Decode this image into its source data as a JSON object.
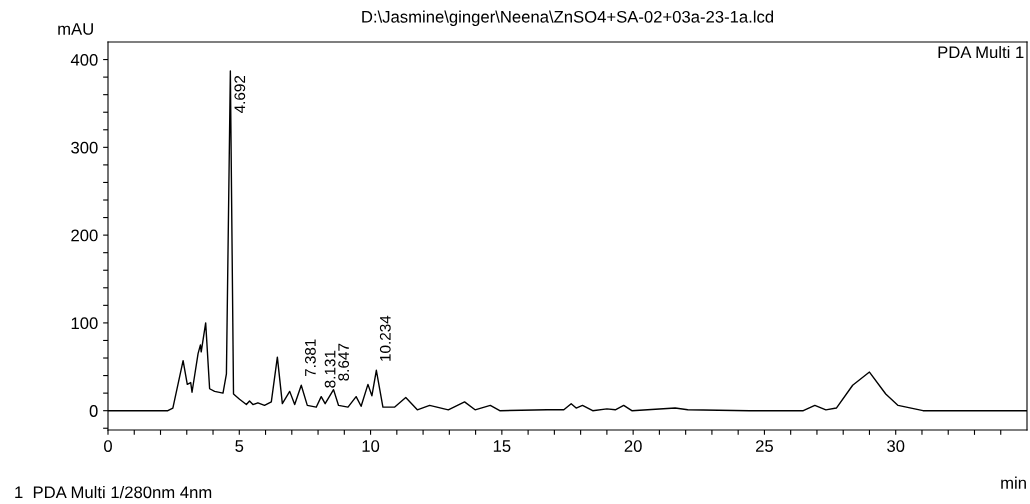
{
  "chart_data": {
    "type": "line",
    "title": "D:\\Jasmine\\ginger\\Neena\\ZnSO4+SA-02+03a-23-1a.lcd",
    "xlabel": "min",
    "ylabel": "mAU",
    "x": [
      0,
      1,
      2,
      2.28,
      2.47,
      2.86,
      3.02,
      3.15,
      3.2,
      3.43,
      3.52,
      3.55,
      3.72,
      3.87,
      4.06,
      4.38,
      4.51,
      4.66,
      4.78,
      5.01,
      5.27,
      5.39,
      5.52,
      5.71,
      5.96,
      6.22,
      6.45,
      6.64,
      6.92,
      7.11,
      7.36,
      7.59,
      7.93,
      8.12,
      8.27,
      8.59,
      8.78,
      9.14,
      9.45,
      9.64,
      9.9,
      10.05,
      10.22,
      10.47,
      10.91,
      11.34,
      11.78,
      12.25,
      12.96,
      13.58,
      13.98,
      14.56,
      14.92,
      16.73,
      17.36,
      17.64,
      17.83,
      18.07,
      18.46,
      19.0,
      19.32,
      19.64,
      19.95,
      21.6,
      22.08,
      24.43,
      26.48,
      26.92,
      27.34,
      27.74,
      28.36,
      29.0,
      29.62,
      30.09,
      31.04,
      35.0
    ],
    "series": [
      {
        "color": "#000000",
        "values": [
          0,
          0,
          0,
          0,
          3,
          57,
          30,
          32,
          21,
          65,
          75,
          67,
          100,
          25,
          22,
          20,
          42,
          387,
          19,
          13,
          7,
          11,
          7,
          9,
          6,
          10,
          61,
          8,
          22,
          7,
          29,
          6,
          4,
          16,
          8,
          24,
          6,
          4,
          16,
          5,
          30,
          17,
          46,
          4,
          4,
          15,
          1,
          6,
          1,
          10,
          1,
          6,
          0,
          1,
          1,
          8,
          3,
          6,
          0,
          2,
          1,
          6,
          0,
          3,
          1,
          0,
          0,
          6,
          1,
          3,
          29,
          44,
          19,
          6,
          0,
          0
        ]
      }
    ],
    "xlim": [
      0,
      35
    ],
    "ylim": [
      -22,
      420
    ],
    "xticks": [
      0,
      {
        "value": 1,
        "label": null
      },
      {
        "value": 2,
        "label": null
      },
      {
        "value": 3,
        "label": null
      },
      {
        "value": 4,
        "label": null
      },
      5,
      {
        "value": 6,
        "label": null
      },
      {
        "value": 7,
        "label": null
      },
      {
        "value": 8,
        "label": null
      },
      {
        "value": 9,
        "label": null
      },
      10,
      {
        "value": 11,
        "label": null
      },
      {
        "value": 12,
        "label": null
      },
      {
        "value": 13,
        "label": null
      },
      {
        "value": 14,
        "label": null
      },
      15,
      {
        "value": 16,
        "label": null
      },
      {
        "value": 17,
        "label": null
      },
      {
        "value": 18,
        "label": null
      },
      {
        "value": 19,
        "label": null
      },
      20,
      {
        "value": 21,
        "label": null
      },
      {
        "value": 22,
        "label": null
      },
      {
        "value": 23,
        "label": null
      },
      {
        "value": 24,
        "label": null
      },
      25,
      {
        "value": 26,
        "label": null
      },
      {
        "value": 27,
        "label": null
      },
      {
        "value": 28,
        "label": null
      },
      {
        "value": 29,
        "label": null
      },
      30,
      {
        "value": 31,
        "label": null
      },
      {
        "value": 32,
        "label": null
      },
      {
        "value": 33,
        "label": null
      },
      {
        "value": 34,
        "label": null
      }
    ],
    "yticks": [
      {
        "value": -20,
        "label": null
      },
      0,
      {
        "value": 20,
        "label": null
      },
      {
        "value": 40,
        "label": null
      },
      {
        "value": 60,
        "label": null
      },
      {
        "value": 80,
        "label": null
      },
      100,
      {
        "value": 120,
        "label": null
      },
      {
        "value": 140,
        "label": null
      },
      {
        "value": 160,
        "label": null
      },
      {
        "value": 180,
        "label": null
      },
      200,
      {
        "value": 220,
        "label": null
      },
      {
        "value": 240,
        "label": null
      },
      {
        "value": 260,
        "label": null
      },
      {
        "value": 280,
        "label": null
      },
      300,
      {
        "value": 320,
        "label": null
      },
      {
        "value": 340,
        "label": null
      },
      {
        "value": 360,
        "label": null
      },
      {
        "value": 380,
        "label": null
      },
      400
    ],
    "grid": false,
    "legend": false,
    "marker": "none",
    "line_style": "solid",
    "annotations": [
      {
        "text": "4.692",
        "x": 4.692,
        "y": 387
      },
      {
        "text": "7.381",
        "x": 7.381,
        "y": 29
      },
      {
        "text": "8.131",
        "x": 8.131,
        "y": 16
      },
      {
        "text": "8.647",
        "x": 8.647,
        "y": 24
      },
      {
        "text": "10.234",
        "x": 10.234,
        "y": 46
      },
      "PDA Multi 1",
      "1  PDA Multi 1/280nm 4nm"
    ]
  }
}
